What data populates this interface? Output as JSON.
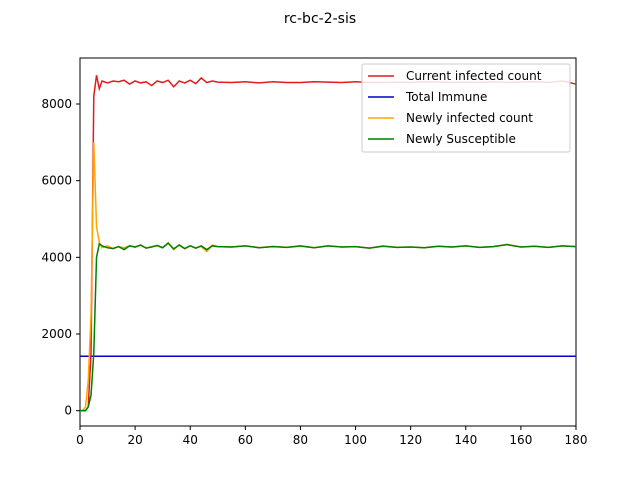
{
  "chart_data": {
    "type": "line",
    "title": "rc-bc-2-sis",
    "xlabel": "",
    "ylabel": "",
    "xlim": [
      0,
      180
    ],
    "ylim": [
      -400,
      9200
    ],
    "xticks": [
      0,
      20,
      40,
      60,
      80,
      100,
      120,
      140,
      160,
      180
    ],
    "yticks": [
      0,
      2000,
      4000,
      6000,
      8000
    ],
    "grid": false,
    "legend_position": "top-right",
    "series": [
      {
        "name": "Current infected count",
        "color": "#e41a1c",
        "x": [
          0,
          1,
          2,
          3,
          4,
          5,
          6,
          7,
          8,
          10,
          12,
          14,
          16,
          18,
          20,
          22,
          24,
          26,
          28,
          30,
          32,
          34,
          36,
          38,
          40,
          42,
          44,
          46,
          48,
          50,
          55,
          60,
          65,
          70,
          75,
          80,
          85,
          90,
          95,
          100,
          105,
          110,
          115,
          120,
          125,
          130,
          135,
          140,
          145,
          150,
          155,
          160,
          165,
          170,
          175,
          180
        ],
        "y": [
          0,
          0,
          0,
          100,
          1500,
          8200,
          8750,
          8400,
          8600,
          8550,
          8600,
          8580,
          8620,
          8520,
          8600,
          8550,
          8580,
          8480,
          8600,
          8560,
          8620,
          8450,
          8600,
          8550,
          8620,
          8530,
          8680,
          8560,
          8600,
          8570,
          8560,
          8580,
          8550,
          8580,
          8560,
          8560,
          8580,
          8570,
          8560,
          8580,
          8560,
          8560,
          8570,
          8560,
          8580,
          8570,
          8560,
          8570,
          8560,
          8580,
          8560,
          8570,
          8580,
          8560,
          8600,
          8520
        ]
      },
      {
        "name": "Total Immune",
        "color": "#0000cc",
        "x": [
          0,
          180
        ],
        "y": [
          1420,
          1420
        ]
      },
      {
        "name": "Newly infected count",
        "color": "#ffa500",
        "x": [
          0,
          1,
          2,
          3,
          4,
          5,
          6,
          7,
          8,
          10,
          12,
          14,
          16,
          18,
          20,
          22,
          24,
          26,
          28,
          30,
          32,
          34,
          36,
          38,
          40,
          42,
          44,
          46,
          48,
          50,
          55,
          60,
          65,
          70,
          75,
          80,
          85,
          90,
          95,
          100,
          105,
          110,
          115,
          120,
          125,
          130,
          135,
          140,
          145,
          150,
          155,
          160,
          165,
          170,
          175,
          180
        ],
        "y": [
          0,
          0,
          100,
          800,
          2500,
          7000,
          4800,
          4400,
          4250,
          4300,
          4220,
          4280,
          4250,
          4300,
          4260,
          4320,
          4240,
          4280,
          4300,
          4250,
          4380,
          4200,
          4330,
          4220,
          4300,
          4250,
          4280,
          4150,
          4320,
          4280,
          4270,
          4300,
          4250,
          4290,
          4260,
          4290,
          4250,
          4300,
          4270,
          4280,
          4240,
          4300,
          4260,
          4270,
          4250,
          4290,
          4270,
          4300,
          4260,
          4280,
          4340,
          4270,
          4290,
          4260,
          4300,
          4280
        ]
      },
      {
        "name": "Newly Susceptible",
        "color": "#008000",
        "x": [
          0,
          1,
          2,
          3,
          4,
          5,
          6,
          7,
          8,
          10,
          12,
          14,
          16,
          18,
          20,
          22,
          24,
          26,
          28,
          30,
          32,
          34,
          36,
          38,
          40,
          42,
          44,
          46,
          48,
          50,
          55,
          60,
          65,
          70,
          75,
          80,
          85,
          90,
          95,
          100,
          105,
          110,
          115,
          120,
          125,
          130,
          135,
          140,
          145,
          150,
          155,
          160,
          165,
          170,
          175,
          180
        ],
        "y": [
          0,
          0,
          0,
          100,
          400,
          1500,
          4000,
          4350,
          4300,
          4250,
          4230,
          4280,
          4200,
          4300,
          4270,
          4320,
          4240,
          4270,
          4310,
          4250,
          4370,
          4220,
          4320,
          4230,
          4300,
          4240,
          4300,
          4200,
          4300,
          4280,
          4270,
          4300,
          4250,
          4280,
          4260,
          4300,
          4250,
          4300,
          4270,
          4280,
          4240,
          4290,
          4260,
          4270,
          4250,
          4290,
          4270,
          4300,
          4260,
          4280,
          4330,
          4270,
          4290,
          4260,
          4300,
          4280
        ]
      }
    ]
  }
}
